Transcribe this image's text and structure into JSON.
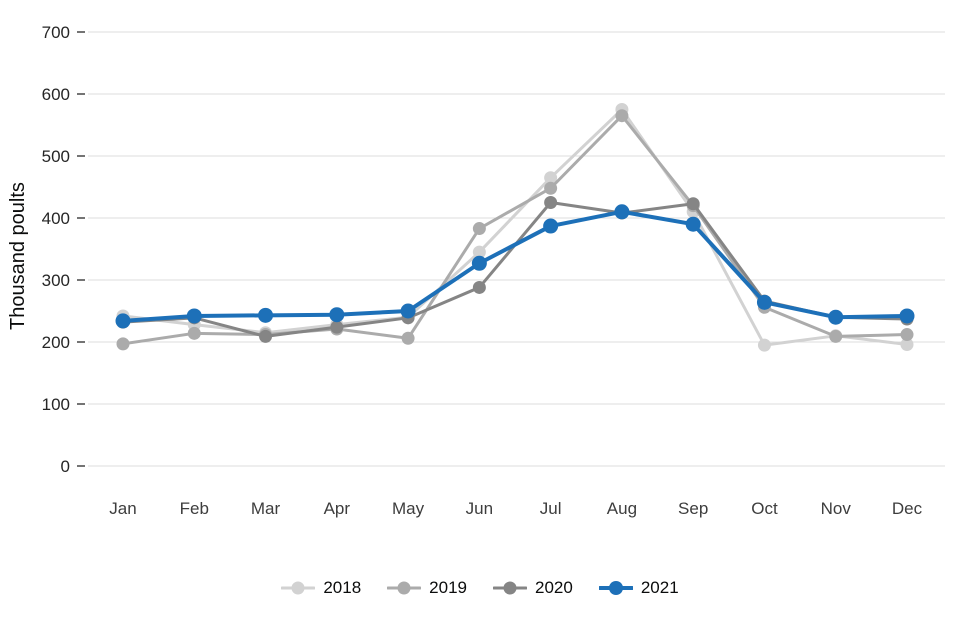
{
  "chart_data": {
    "type": "line",
    "title": "",
    "ylabel": "Thousand poults",
    "xlabel": "",
    "ylim": [
      0,
      700
    ],
    "y_ticks": [
      0,
      100,
      200,
      300,
      400,
      500,
      600,
      700
    ],
    "grid": true,
    "legend_position": "bottom",
    "categories": [
      "Jan",
      "Feb",
      "Mar",
      "Apr",
      "May",
      "Jun",
      "Jul",
      "Aug",
      "Sep",
      "Oct",
      "Nov",
      "Dec"
    ],
    "series": [
      {
        "name": "2018",
        "color": "#d2d2d2",
        "values": [
          242,
          228,
          215,
          228,
          240,
          345,
          465,
          575,
          410,
          195,
          210,
          196
        ]
      },
      {
        "name": "2019",
        "color": "#ababab",
        "values": [
          197,
          214,
          212,
          221,
          206,
          383,
          448,
          565,
          420,
          256,
          209,
          212
        ]
      },
      {
        "name": "2020",
        "color": "#858585",
        "values": [
          232,
          239,
          209,
          224,
          239,
          288,
          425,
          408,
          423,
          266,
          240,
          237
        ]
      },
      {
        "name": "2021",
        "color": "#1d70b8",
        "values": [
          234,
          242,
          243,
          244,
          250,
          327,
          387,
          410,
          390,
          264,
          240,
          242
        ]
      }
    ],
    "colors": {
      "gridline": "#dedede",
      "tick": "#454545",
      "tick_label": "#262626",
      "axis_label": "#0b0c0c"
    }
  }
}
